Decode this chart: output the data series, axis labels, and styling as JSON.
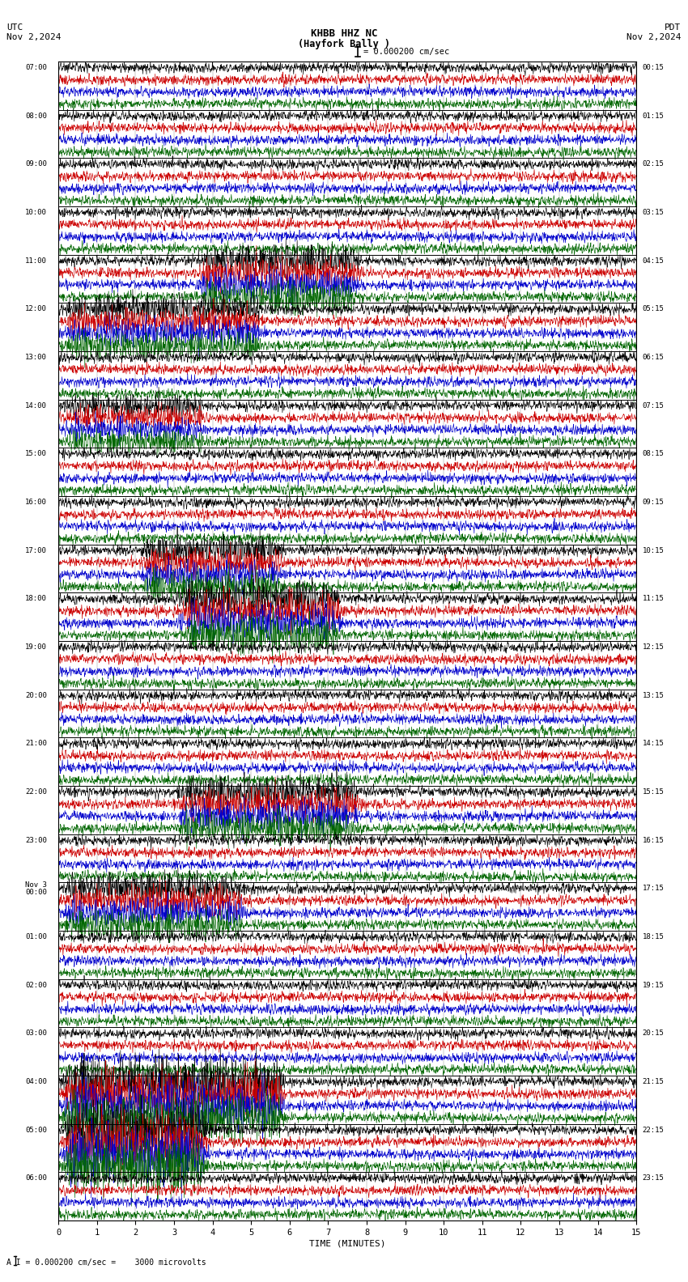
{
  "title_line1": "KHBB HHZ NC",
  "title_line2": "(Hayfork Bally )",
  "scale_text": "= 0.000200 cm/sec",
  "utc_label": "UTC",
  "date_left": "Nov 2,2024",
  "date_right": "Nov 2,2024",
  "pdt_label": "PDT",
  "bottom_label": "A I = 0.000200 cm/sec =    3000 microvolts",
  "xlabel": "TIME (MINUTES)",
  "left_times": [
    "07:00",
    "08:00",
    "09:00",
    "10:00",
    "11:00",
    "12:00",
    "13:00",
    "14:00",
    "15:00",
    "16:00",
    "17:00",
    "18:00",
    "19:00",
    "20:00",
    "21:00",
    "22:00",
    "23:00",
    "Nov 3\n00:00",
    "01:00",
    "02:00",
    "03:00",
    "04:00",
    "05:00",
    "06:00"
  ],
  "right_times": [
    "00:15",
    "01:15",
    "02:15",
    "03:15",
    "04:15",
    "05:15",
    "06:15",
    "07:15",
    "08:15",
    "09:15",
    "10:15",
    "11:15",
    "12:15",
    "13:15",
    "14:15",
    "15:15",
    "16:15",
    "17:15",
    "18:15",
    "19:15",
    "20:15",
    "21:15",
    "22:15",
    "23:15"
  ],
  "n_rows": 24,
  "n_traces_per_row": 4,
  "colors": [
    "#000000",
    "#cc0000",
    "#0000cc",
    "#006600"
  ],
  "bg_color": "#ffffff",
  "fig_width": 8.5,
  "fig_height": 15.84,
  "dpi": 100,
  "xmin": 0,
  "xmax": 15,
  "x_ticks": [
    0,
    1,
    2,
    3,
    4,
    5,
    6,
    7,
    8,
    9,
    10,
    11,
    12,
    13,
    14,
    15
  ],
  "base_amplitude": 0.28,
  "noise_seed": 42,
  "event_rows": {
    "4": [
      3.5,
      8.0,
      2.2
    ],
    "5": [
      0.0,
      5.5,
      1.8
    ],
    "7": [
      0.0,
      4.0,
      1.5
    ],
    "10": [
      2.0,
      6.0,
      2.0
    ],
    "11": [
      3.0,
      7.5,
      2.5
    ],
    "15": [
      3.0,
      8.0,
      2.2
    ],
    "17": [
      0.0,
      5.0,
      2.0
    ],
    "21": [
      0.0,
      6.0,
      3.5
    ],
    "22": [
      0.0,
      4.0,
      4.0
    ]
  }
}
